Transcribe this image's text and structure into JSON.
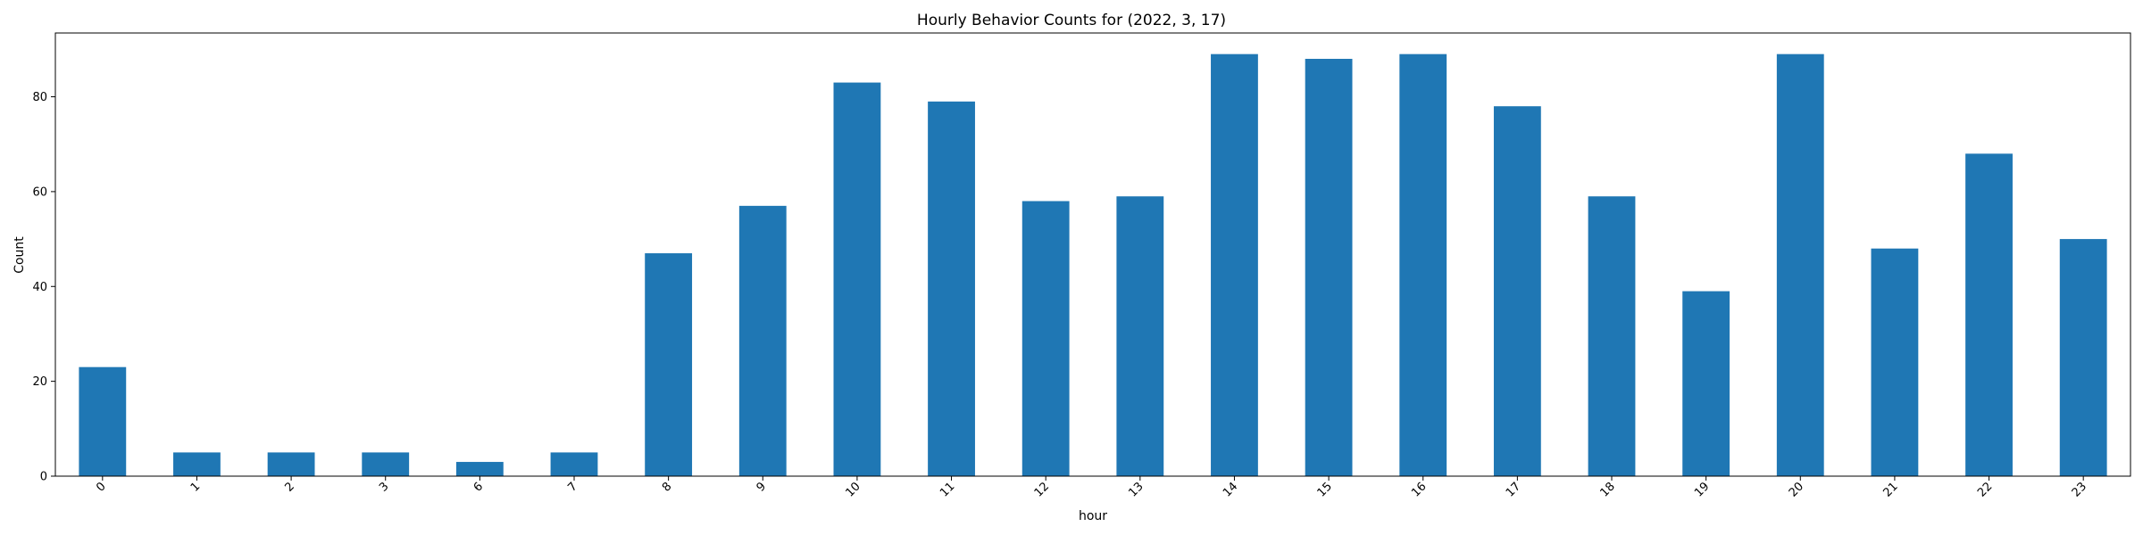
{
  "chart_data": {
    "type": "bar",
    "title": "Hourly Behavior Counts for (2022, 3, 17)",
    "xlabel": "hour",
    "ylabel": "Count",
    "categories": [
      "0",
      "1",
      "2",
      "3",
      "6",
      "7",
      "8",
      "9",
      "10",
      "11",
      "12",
      "13",
      "14",
      "15",
      "16",
      "17",
      "18",
      "19",
      "20",
      "21",
      "22",
      "23"
    ],
    "values": [
      23,
      5,
      5,
      5,
      3,
      5,
      47,
      57,
      83,
      79,
      58,
      59,
      89,
      88,
      89,
      78,
      59,
      39,
      89,
      48,
      68,
      50
    ],
    "ylim": [
      0,
      93.45
    ],
    "yticks": [
      0,
      20,
      40,
      60,
      80
    ],
    "bar_color": "#1f77b4",
    "grid": false,
    "legend": "none"
  }
}
